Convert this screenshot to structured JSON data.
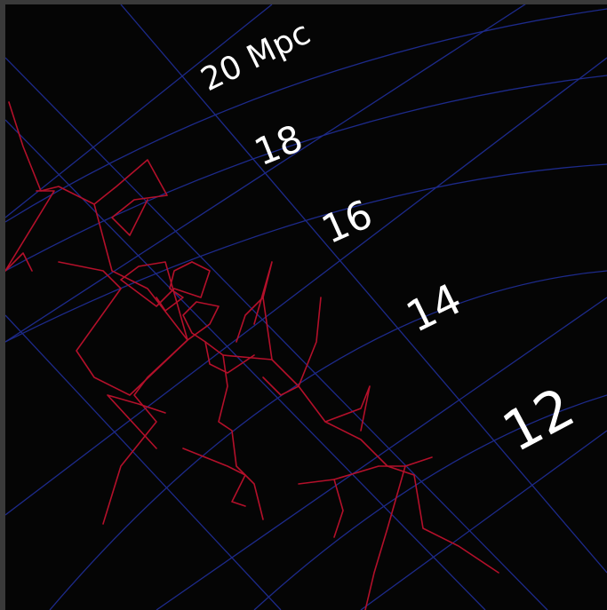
{
  "diagram": {
    "distance_labels": [
      {
        "id": "20",
        "text": "20 Mpc"
      },
      {
        "id": "18",
        "text": "18"
      },
      {
        "id": "16",
        "text": "16"
      },
      {
        "id": "14",
        "text": "14"
      },
      {
        "id": "12",
        "text": "12"
      }
    ],
    "colors": {
      "background": "#050505",
      "grid": "#1d2a8a",
      "filaments": "#b3102a",
      "labels": "#ffffff"
    }
  }
}
